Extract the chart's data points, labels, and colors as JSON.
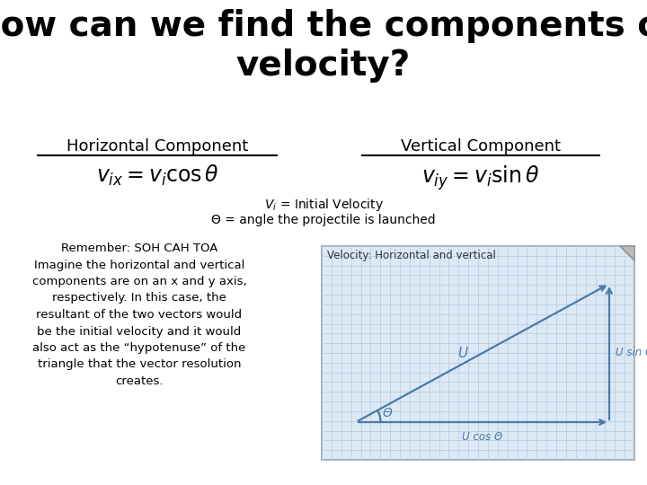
{
  "title": "How can we find the components of\nvelocity?",
  "title_fontsize": 28,
  "title_color": "#000000",
  "bg_color": "#ffffff",
  "horiz_label": "Horizontal Component",
  "vert_label": "Vertical Component",
  "horiz_eq": "$v_{ix} = v_i \\cos\\theta$",
  "vert_eq": "$v_{iy} = v_i \\sin\\theta$",
  "center_note_line1": "$V_i$ = Initial Velocity",
  "center_note_line2": "Θ = angle the projectile is launched",
  "left_text": "Remember: SOH CAH TOA\nImagine the horizontal and vertical\ncomponents are on an x and y axis,\nrespectively. In this case, the\nresultant of the two vectors would\nbe the initial velocity and it would\nalso act as the “hypotenuse” of the\ntriangle that the vector resolution\ncreates.",
  "diagram_title": "Velocity: Horizontal and vertical",
  "diagram_bg": "#dce9f5",
  "diagram_grid_color": "#b0cce0",
  "diagram_line_color": "#4a7aaa",
  "diagram_text_color": "#4a7aaa",
  "label_u": "U",
  "label_usin": "U sin Θ",
  "label_ucos": "U cos Θ",
  "label_theta": "Θ"
}
